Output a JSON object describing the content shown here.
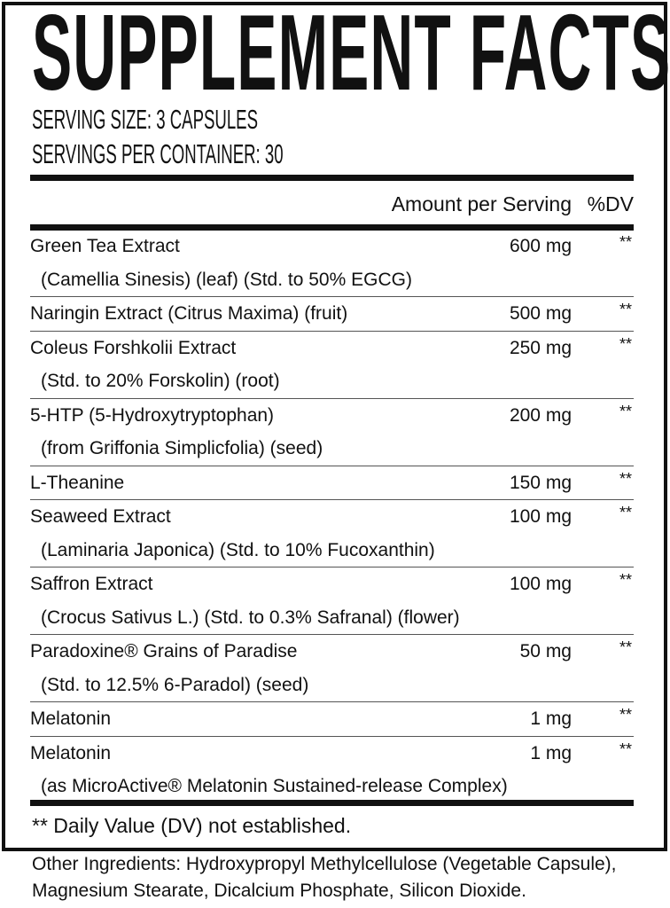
{
  "title": "SUPPLEMENT FACTS",
  "serving_size": "SERVING SIZE: 3 CAPSULES",
  "servings_per_container": "SERVINGS PER CONTAINER: 30",
  "header": {
    "amount": "Amount per Serving",
    "dv": "%DV"
  },
  "ingredients": [
    {
      "name": "Green Tea Extract",
      "detail": "(Camellia Sinesis) (leaf) (Std. to 50% EGCG)",
      "amount": "600 mg",
      "dv": "**"
    },
    {
      "name": "Naringin Extract (Citrus Maxima) (fruit)",
      "detail": null,
      "amount": "500 mg",
      "dv": "**"
    },
    {
      "name": "Coleus Forshkolii Extract",
      "detail": "(Std. to 20% Forskolin) (root)",
      "amount": "250 mg",
      "dv": "**"
    },
    {
      "name": "5-HTP (5-Hydroxytryptophan)",
      "detail": "(from Griffonia Simplicfolia) (seed)",
      "amount": "200 mg",
      "dv": "**"
    },
    {
      "name": "L-Theanine",
      "detail": null,
      "amount": "150 mg",
      "dv": "**"
    },
    {
      "name": "Seaweed Extract",
      "detail": "(Laminaria Japonica) (Std. to 10% Fucoxanthin)",
      "amount": "100 mg",
      "dv": "**"
    },
    {
      "name": "Saffron Extract",
      "detail": "(Crocus Sativus L.) (Std. to 0.3% Safranal) (flower)",
      "amount": "100 mg",
      "dv": "**"
    },
    {
      "name": "Paradoxine® Grains of Paradise",
      "detail": "(Std. to 12.5% 6-Paradol) (seed)",
      "amount": "50 mg",
      "dv": "**"
    },
    {
      "name": "Melatonin",
      "detail": null,
      "amount": "1 mg",
      "dv": "**"
    },
    {
      "name": "Melatonin",
      "detail": "(as MicroActive® Melatonin Sustained-release Complex)",
      "amount": "1 mg",
      "dv": "**"
    }
  ],
  "footnote": "** Daily Value (DV) not established.",
  "other_ingredients": [
    "Other Ingredients: Hydroxypropyl Methylcellulose (Vegetable Capsule),",
    "Magnesium Stearate, Dicalcium Phosphate, Silicon Dioxide."
  ]
}
